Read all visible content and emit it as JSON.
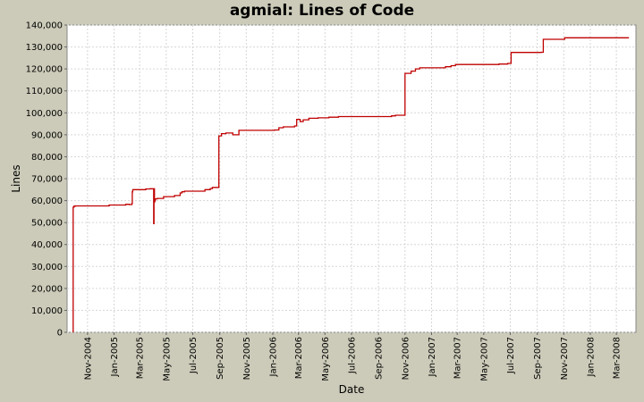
{
  "chart_data": {
    "type": "line",
    "title": "agmial: Lines of Code",
    "xlabel": "Date",
    "ylabel": "Lines",
    "ylim": [
      0,
      140000
    ],
    "grid": true,
    "colors": {
      "line": "#c00000",
      "plot_bg": "#ffffff",
      "page_bg": "#cccbb9",
      "grid": "#d6d6d6"
    },
    "y_ticks": [
      {
        "value": 0,
        "label": "0"
      },
      {
        "value": 10000,
        "label": "10,000"
      },
      {
        "value": 20000,
        "label": "20,000"
      },
      {
        "value": 30000,
        "label": "30,000"
      },
      {
        "value": 40000,
        "label": "40,000"
      },
      {
        "value": 50000,
        "label": "50,000"
      },
      {
        "value": 60000,
        "label": "60,000"
      },
      {
        "value": 70000,
        "label": "70,000"
      },
      {
        "value": 80000,
        "label": "80,000"
      },
      {
        "value": 90000,
        "label": "90,000"
      },
      {
        "value": 100000,
        "label": "100,000"
      },
      {
        "value": 110000,
        "label": "110,000"
      },
      {
        "value": 120000,
        "label": "120,000"
      },
      {
        "value": 130000,
        "label": "130,000"
      },
      {
        "value": 140000,
        "label": "140,000"
      }
    ],
    "x_range": [
      "2004-09-15",
      "2008-04-15"
    ],
    "x_ticks": [
      {
        "date": "2004-11-01",
        "label": "Nov-2004"
      },
      {
        "date": "2005-01-01",
        "label": "Jan-2005"
      },
      {
        "date": "2005-03-01",
        "label": "Mar-2005"
      },
      {
        "date": "2005-05-01",
        "label": "May-2005"
      },
      {
        "date": "2005-07-01",
        "label": "Jul-2005"
      },
      {
        "date": "2005-09-01",
        "label": "Sep-2005"
      },
      {
        "date": "2005-11-01",
        "label": "Nov-2005"
      },
      {
        "date": "2006-01-01",
        "label": "Jan-2006"
      },
      {
        "date": "2006-03-01",
        "label": "Mar-2006"
      },
      {
        "date": "2006-05-01",
        "label": "May-2006"
      },
      {
        "date": "2006-07-01",
        "label": "Jul-2006"
      },
      {
        "date": "2006-09-01",
        "label": "Sep-2006"
      },
      {
        "date": "2006-11-01",
        "label": "Nov-2006"
      },
      {
        "date": "2007-01-01",
        "label": "Jan-2007"
      },
      {
        "date": "2007-03-01",
        "label": "Mar-2007"
      },
      {
        "date": "2007-05-01",
        "label": "May-2007"
      },
      {
        "date": "2007-07-01",
        "label": "Jul-2007"
      },
      {
        "date": "2007-09-01",
        "label": "Sep-2007"
      },
      {
        "date": "2007-11-01",
        "label": "Nov-2007"
      },
      {
        "date": "2008-01-01",
        "label": "Jan-2008"
      },
      {
        "date": "2008-03-01",
        "label": "Mar-2008"
      }
    ],
    "series": [
      {
        "name": "",
        "x": [
          "2004-09-29",
          "2004-09-29",
          "2004-10-01",
          "2004-10-05",
          "2004-12-20",
          "2004-12-21",
          "2005-01-28",
          "2005-02-05",
          "2005-02-11",
          "2005-02-12",
          "2005-02-13",
          "2005-03-15",
          "2005-03-25",
          "2005-04-02",
          "2005-04-03",
          "2005-04-04",
          "2005-04-05",
          "2005-04-06",
          "2005-04-10",
          "2005-04-25",
          "2005-05-20",
          "2005-06-02",
          "2005-06-06",
          "2005-06-12",
          "2005-07-15",
          "2005-07-29",
          "2005-08-10",
          "2005-08-15",
          "2005-08-29",
          "2005-08-30",
          "2005-09-05",
          "2005-09-15",
          "2005-10-01",
          "2005-10-15",
          "2006-01-05",
          "2006-01-15",
          "2006-01-25",
          "2006-02-20",
          "2006-02-25",
          "2006-03-05",
          "2006-03-12",
          "2006-03-25",
          "2006-04-15",
          "2006-05-10",
          "2006-06-01",
          "2006-06-10",
          "2006-10-01",
          "2006-10-10",
          "2006-11-01",
          "2006-11-15",
          "2006-11-25",
          "2006-12-05",
          "2007-02-02",
          "2007-02-15",
          "2007-02-25",
          "2007-06-05",
          "2007-06-25",
          "2007-07-03",
          "2007-09-10",
          "2007-09-15",
          "2007-11-03",
          "2008-03-30"
        ],
        "values": [
          0,
          57000,
          57500,
          57600,
          57700,
          58000,
          58300,
          58200,
          58600,
          64000,
          65000,
          65300,
          65400,
          49500,
          65400,
          59500,
          60200,
          60800,
          61000,
          61800,
          62300,
          63500,
          64000,
          64300,
          64300,
          65000,
          65500,
          66000,
          66000,
          89500,
          90500,
          90800,
          90000,
          92000,
          92200,
          93200,
          93600,
          94000,
          97000,
          96000,
          96800,
          97500,
          97700,
          98000,
          98300,
          98300,
          98600,
          98900,
          118000,
          119000,
          120000,
          120500,
          121000,
          121500,
          122000,
          122200,
          122500,
          127500,
          127600,
          133500,
          134200,
          134200
        ]
      }
    ]
  }
}
